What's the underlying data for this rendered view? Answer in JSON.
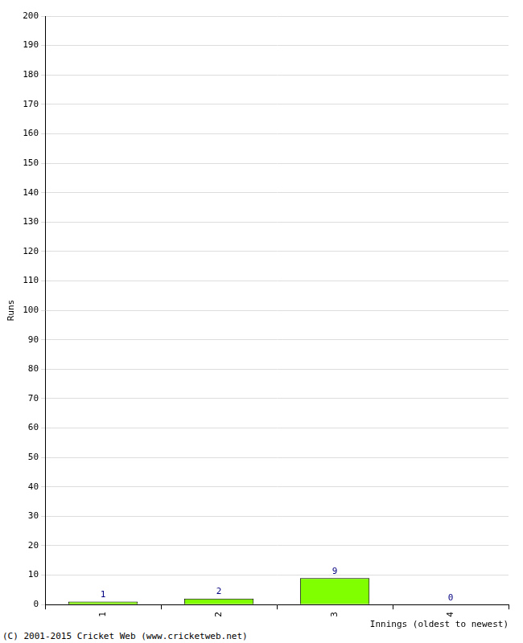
{
  "chart_data": {
    "type": "bar",
    "categories": [
      "1",
      "2",
      "3",
      "4"
    ],
    "values": [
      1,
      2,
      9,
      0
    ],
    "color": "#80ff00",
    "x_label": "Innings (oldest to newest)",
    "y_label": "Runs",
    "ylim": [
      0,
      200
    ],
    "yticks": [
      0,
      10,
      20,
      30,
      40,
      50,
      60,
      70,
      80,
      90,
      100,
      110,
      120,
      130,
      140,
      150,
      160,
      170,
      180,
      190,
      200
    ],
    "grid": true,
    "data_labels": true,
    "annotations": [
      "(C) 2001-2015 Cricket Web (www.cricketweb.net)"
    ]
  }
}
